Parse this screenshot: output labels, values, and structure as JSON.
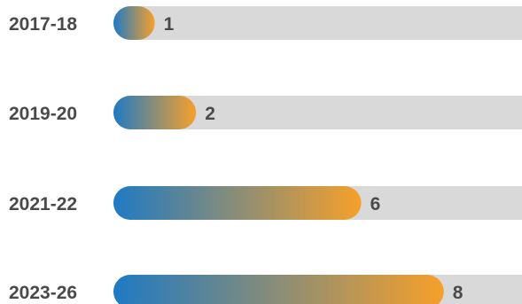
{
  "chart_data": {
    "type": "bar",
    "orientation": "horizontal",
    "categories": [
      "2017-18",
      "2019-20",
      "2021-22",
      "2023-26"
    ],
    "values": [
      1,
      2,
      6,
      8
    ],
    "title": "",
    "xlabel": "",
    "ylabel": "",
    "xlim": [
      0,
      10
    ],
    "grid": false,
    "legend": "none",
    "colors": {
      "bar_gradient_start": "#1f7ac4",
      "bar_gradient_end": "#f6a02a",
      "track": "#d9d9d9",
      "label_text": "#4a4a4a"
    }
  }
}
